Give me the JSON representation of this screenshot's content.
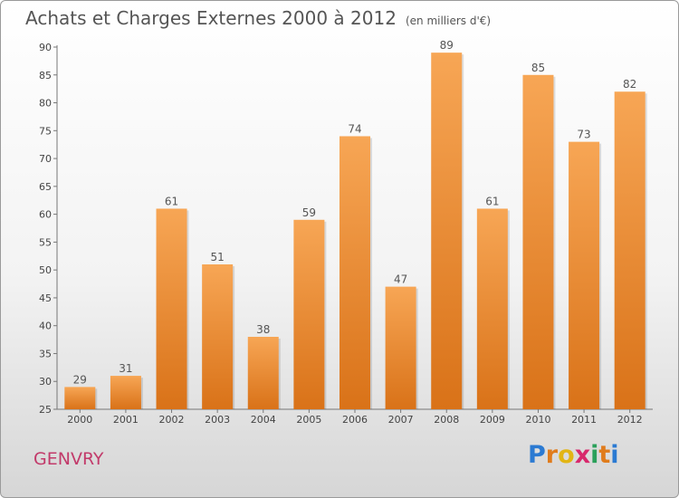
{
  "header": {
    "title": "Achats et Charges Externes 2000 à 2012",
    "subtitle": "(en milliers d'€)"
  },
  "footer": {
    "commune": "GENVRY",
    "logo_letters": [
      "P",
      "r",
      "o",
      "x",
      "i",
      "t",
      "i"
    ],
    "logo_colors": [
      "#2b7ad2",
      "#e07c1c",
      "#e2b514",
      "#d8296c",
      "#2aa05a",
      "#e07c1c",
      "#2b7ad2"
    ]
  },
  "chart_data": {
    "type": "bar",
    "categories": [
      "2000",
      "2001",
      "2002",
      "2003",
      "2004",
      "2005",
      "2006",
      "2007",
      "2008",
      "2009",
      "2010",
      "2011",
      "2012"
    ],
    "values": [
      29,
      31,
      61,
      51,
      38,
      59,
      74,
      47,
      89,
      61,
      85,
      73,
      82
    ],
    "title": "Achats et Charges Externes 2000 à 2012",
    "ylim": [
      25,
      90
    ],
    "yticks": [
      25,
      30,
      35,
      40,
      45,
      50,
      55,
      60,
      65,
      70,
      75,
      80,
      85,
      90
    ],
    "grid": false,
    "bar_color_top": "#f7a655",
    "bar_color_bottom": "#d97218"
  }
}
